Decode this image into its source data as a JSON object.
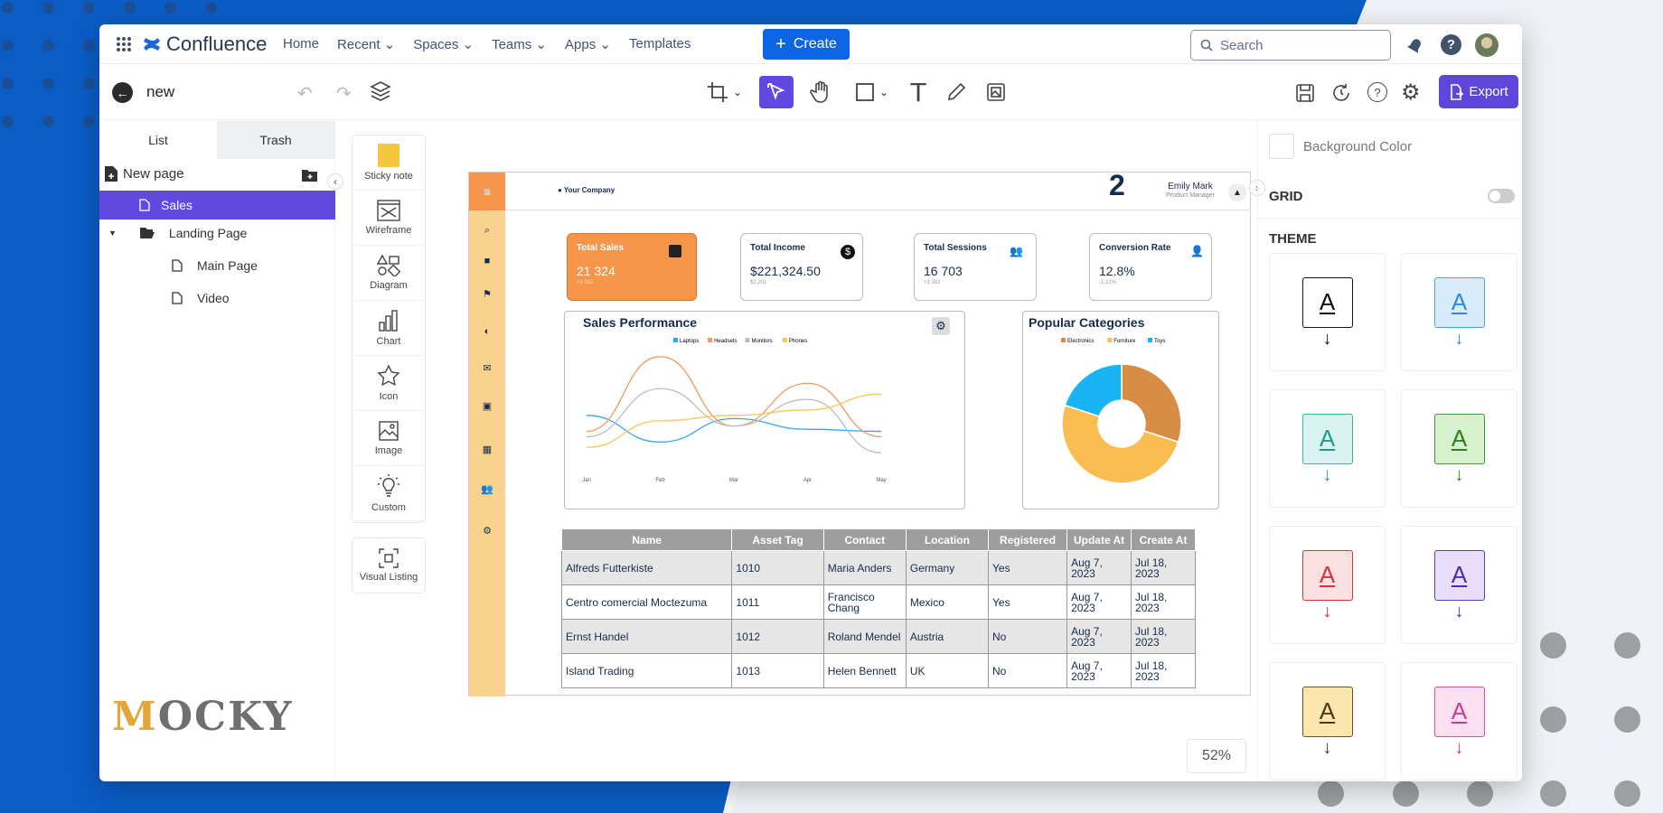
{
  "brand": {
    "app_name": "Confluence",
    "watermark_first": "M",
    "watermark_rest": "OCKY"
  },
  "nav": {
    "links": [
      "Home",
      "Recent",
      "Spaces",
      "Teams",
      "Apps",
      "Templates"
    ],
    "create_label": "Create",
    "search_placeholder": "Search"
  },
  "page": {
    "title": "new"
  },
  "toolbar": {
    "export_label": "Export"
  },
  "left": {
    "tabs": [
      "List",
      "Trash"
    ],
    "new_page_label": "New page",
    "tree": [
      {
        "label": "Sales",
        "selected": true
      },
      {
        "label": "Landing Page"
      },
      {
        "label": "Main Page"
      },
      {
        "label": "Video"
      }
    ]
  },
  "palette": [
    "Sticky note",
    "Wireframe",
    "Diagram",
    "Chart",
    "Icon",
    "Image",
    "Custom",
    "Visual Listing"
  ],
  "right": {
    "bg_color_label": "Background Color",
    "grid_label": "GRID",
    "theme_label": "THEME",
    "theme_letter": "A"
  },
  "zoom": "52%",
  "colors": {
    "accent": "#5e45db",
    "confluence_blue": "#0c66e4",
    "orange": "#f7954a",
    "sidebar": "#f9d38e"
  },
  "mock": {
    "company": "Your Company",
    "user_name": "Emily Mark",
    "user_role": "Product Manager",
    "notif_count": "2",
    "kpis": [
      {
        "title": "Total Sales",
        "value": "21 324",
        "sub": "+2 031"
      },
      {
        "title": "Total Income",
        "value": "$221,324.50",
        "sub": "$2,201"
      },
      {
        "title": "Total Sessions",
        "value": "16 703",
        "sub": "+3 392"
      },
      {
        "title": "Conversion Rate",
        "value": "12.8%",
        "sub": "-1.22%"
      }
    ],
    "sales_title": "Sales Performance",
    "categories_title": "Popular Categories",
    "table": {
      "headers": [
        "Name",
        "Asset Tag",
        "Contact",
        "Location",
        "Registered",
        "Update At",
        "Create At"
      ],
      "rows": [
        [
          "Alfreds Futterkiste",
          "1010",
          "Maria Anders",
          "Germany",
          "Yes",
          "Aug 7, 2023",
          "Jul 18, 2023"
        ],
        [
          "Centro comercial Moctezuma",
          "1011",
          "Francisco Chang",
          "Mexico",
          "Yes",
          "Aug 7, 2023",
          "Jul 18, 2023"
        ],
        [
          "Ernst Handel",
          "1012",
          "Roland Mendel",
          "Austria",
          "No",
          "Aug 7, 2023",
          "Jul 18, 2023"
        ],
        [
          "Island Trading",
          "1013",
          "Helen Bennett",
          "UK",
          "No",
          "Aug 7, 2023",
          "Jul 18, 2023"
        ]
      ]
    }
  },
  "chart_data": [
    {
      "type": "line",
      "title": "Sales Performance",
      "categories": [
        "Jan",
        "Feb",
        "Mar",
        "Apr",
        "May"
      ],
      "series": [
        {
          "name": "Laptops",
          "color": "#2aa9f2",
          "values": [
            45,
            20,
            42,
            32,
            30
          ]
        },
        {
          "name": "Headsets",
          "color": "#ef9a5a",
          "values": [
            30,
            100,
            35,
            75,
            25
          ]
        },
        {
          "name": "Monitors",
          "color": "#bdbdbd",
          "values": [
            25,
            70,
            35,
            60,
            10
          ]
        },
        {
          "name": "Phones",
          "color": "#f7c654",
          "values": [
            15,
            40,
            45,
            50,
            65
          ]
        }
      ]
    },
    {
      "type": "pie",
      "title": "Popular Categories",
      "labels": [
        "Electronics",
        "Furniture",
        "Toys"
      ],
      "values": [
        30,
        50,
        20
      ],
      "colors": [
        "#d98c45",
        "#f9bd51",
        "#18b4f4"
      ]
    }
  ]
}
